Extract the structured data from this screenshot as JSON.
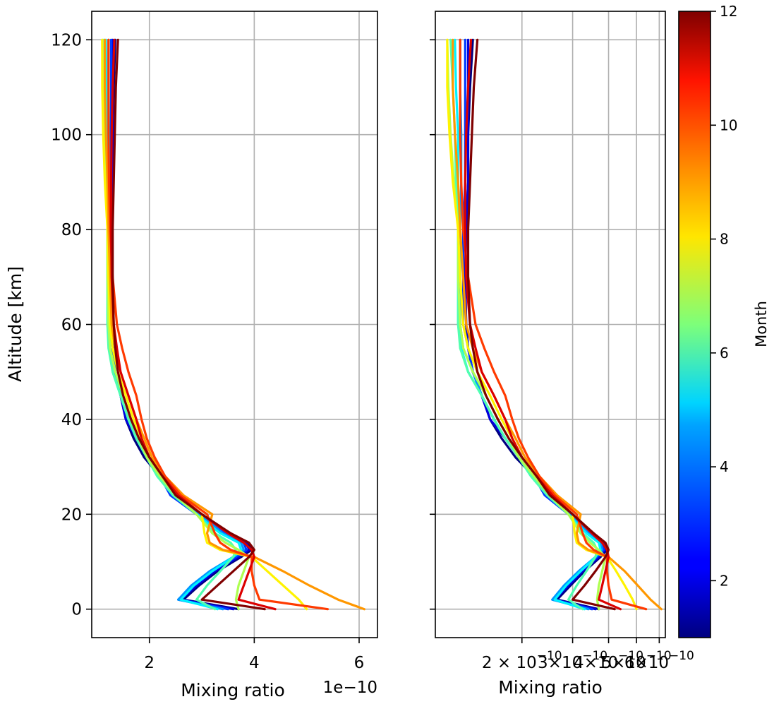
{
  "chart_data": [
    {
      "type": "line",
      "panel": "left",
      "xlabel": "Mixing ratio",
      "ylabel": "Altitude [km]",
      "x_offset_text": "1e−10",
      "x_scale": "linear",
      "xlim": [
        0.9,
        6.35
      ],
      "ylim": [
        -6,
        126
      ],
      "x_ticks": [
        2,
        4,
        6
      ],
      "x_tick_labels": [
        "2",
        "4",
        "6"
      ],
      "y_ticks": [
        0,
        20,
        40,
        60,
        80,
        100,
        120
      ],
      "y_tick_labels": [
        "0",
        "20",
        "40",
        "60",
        "80",
        "100",
        "120"
      ],
      "grid": true
    },
    {
      "type": "line",
      "panel": "right",
      "xlabel": "Mixing ratio",
      "x_scale": "log",
      "xlim": [
        1.0,
        6.3
      ],
      "ylim": [
        -6,
        126
      ],
      "x_ticks": [
        2,
        3,
        4,
        5,
        6
      ],
      "x_tick_labels": [
        "2 × 10",
        "3×10",
        "4×10",
        "5×10",
        "6×10"
      ],
      "x_tick_exponent": "−10",
      "y_ticks": [
        0,
        20,
        40,
        60,
        80,
        100,
        120
      ],
      "grid": true
    }
  ],
  "colorbar": {
    "label": "Month",
    "colormap": "jet",
    "range": [
      1,
      12
    ],
    "ticks": [
      2,
      4,
      6,
      8,
      10,
      12
    ],
    "tick_labels": [
      "2",
      "4",
      "6",
      "8",
      "10",
      "12"
    ]
  },
  "altitudes": [
    0,
    2,
    5,
    8,
    11,
    12.5,
    14,
    16,
    20,
    24,
    28,
    32,
    36,
    40,
    45,
    50,
    55,
    60,
    70,
    80,
    90,
    100,
    110,
    120
  ],
  "series": [
    {
      "month": 1,
      "values": [
        3.7,
        2.65,
        2.95,
        3.3,
        3.75,
        3.95,
        3.85,
        3.55,
        2.95,
        2.45,
        2.2,
        1.9,
        1.7,
        1.55,
        1.45,
        1.35,
        1.3,
        1.28,
        1.27,
        1.28,
        1.3,
        1.3,
        1.32,
        1.35
      ]
    },
    {
      "month": 2,
      "values": [
        3.6,
        2.6,
        2.9,
        3.25,
        3.7,
        3.9,
        3.85,
        3.5,
        2.9,
        2.45,
        2.2,
        1.95,
        1.75,
        1.55,
        1.45,
        1.35,
        1.3,
        1.28,
        1.27,
        1.28,
        1.3,
        1.3,
        1.3,
        1.3
      ]
    },
    {
      "month": 3,
      "values": [
        3.5,
        2.55,
        2.85,
        3.2,
        3.65,
        3.85,
        3.8,
        3.45,
        2.9,
        2.4,
        2.2,
        1.95,
        1.75,
        1.6,
        1.45,
        1.35,
        1.3,
        1.25,
        1.25,
        1.25,
        1.27,
        1.27,
        1.27,
        1.27
      ]
    },
    {
      "month": 4,
      "values": [
        3.4,
        2.55,
        2.8,
        3.15,
        3.6,
        3.8,
        3.75,
        3.4,
        2.95,
        2.45,
        2.2,
        1.95,
        1.75,
        1.6,
        1.45,
        1.35,
        1.25,
        1.22,
        1.22,
        1.22,
        1.23,
        1.23,
        1.22,
        1.22
      ]
    },
    {
      "month": 5,
      "values": [
        3.3,
        2.6,
        2.85,
        3.2,
        3.6,
        3.75,
        3.7,
        3.35,
        2.9,
        2.45,
        2.15,
        1.95,
        1.75,
        1.6,
        1.45,
        1.3,
        1.23,
        1.2,
        1.2,
        1.2,
        1.2,
        1.2,
        1.18,
        1.17
      ]
    },
    {
      "month": 6,
      "values": [
        3.25,
        2.9,
        3.1,
        3.35,
        3.6,
        3.65,
        3.55,
        3.25,
        2.9,
        2.45,
        2.15,
        1.95,
        1.75,
        1.6,
        1.45,
        1.3,
        1.22,
        1.2,
        1.2,
        1.2,
        1.18,
        1.17,
        1.15,
        1.13
      ]
    },
    {
      "month": 7,
      "values": [
        3.7,
        3.65,
        3.7,
        3.8,
        3.9,
        3.7,
        3.45,
        3.2,
        2.9,
        2.5,
        2.2,
        1.95,
        1.8,
        1.65,
        1.5,
        1.35,
        1.25,
        1.22,
        1.2,
        1.2,
        1.16,
        1.13,
        1.11,
        1.1
      ]
    },
    {
      "month": 8,
      "values": [
        5.0,
        4.85,
        4.55,
        4.25,
        3.95,
        3.35,
        3.1,
        3.05,
        3.0,
        2.55,
        2.25,
        2.0,
        1.85,
        1.7,
        1.55,
        1.4,
        1.3,
        1.25,
        1.22,
        1.2,
        1.15,
        1.12,
        1.1,
        1.1
      ]
    },
    {
      "month": 9,
      "values": [
        6.1,
        5.6,
        5.05,
        4.55,
        4.0,
        3.4,
        3.15,
        3.1,
        3.2,
        2.65,
        2.3,
        2.05,
        1.9,
        1.75,
        1.6,
        1.45,
        1.35,
        1.28,
        1.25,
        1.22,
        1.2,
        1.17,
        1.15,
        1.15
      ]
    },
    {
      "month": 10,
      "values": [
        5.4,
        4.1,
        4.0,
        3.95,
        3.95,
        3.55,
        3.35,
        3.25,
        3.1,
        2.6,
        2.3,
        2.1,
        1.95,
        1.85,
        1.75,
        1.6,
        1.48,
        1.38,
        1.3,
        1.25,
        1.23,
        1.22,
        1.22,
        1.22
      ]
    },
    {
      "month": 11,
      "values": [
        4.4,
        3.7,
        3.8,
        3.9,
        4.0,
        3.95,
        3.8,
        3.5,
        3.0,
        2.55,
        2.25,
        2.0,
        1.85,
        1.75,
        1.6,
        1.45,
        1.38,
        1.32,
        1.28,
        1.27,
        1.27,
        1.28,
        1.3,
        1.33
      ]
    },
    {
      "month": 12,
      "values": [
        4.2,
        3.0,
        3.3,
        3.6,
        3.9,
        4.0,
        3.9,
        3.55,
        3.0,
        2.5,
        2.25,
        2.0,
        1.8,
        1.65,
        1.5,
        1.4,
        1.35,
        1.32,
        1.3,
        1.3,
        1.32,
        1.34,
        1.36,
        1.4
      ]
    }
  ]
}
